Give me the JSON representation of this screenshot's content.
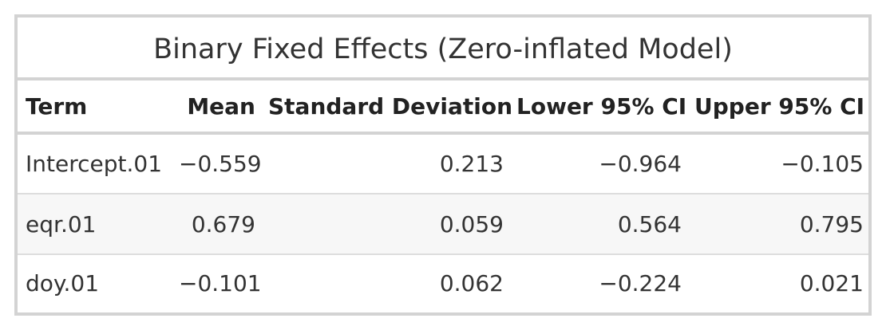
{
  "table": {
    "title": "Binary Fixed Effects (Zero-inflated Model)",
    "columns": [
      "Term",
      "Mean",
      "Standard Deviation",
      "Lower 95% CI",
      "Upper 95% CI"
    ],
    "rows": [
      [
        "Intercept.01",
        "−0.559",
        "0.213",
        "−0.964",
        "−0.105"
      ],
      [
        "eqr.01",
        "0.679",
        "0.059",
        "0.564",
        "0.795"
      ],
      [
        "doy.01",
        "−0.101",
        "0.062",
        "−0.224",
        "0.021"
      ]
    ]
  },
  "colors": {
    "border": "#d3d3d3",
    "stripe": "#f7f7f7",
    "text": "#333333"
  }
}
